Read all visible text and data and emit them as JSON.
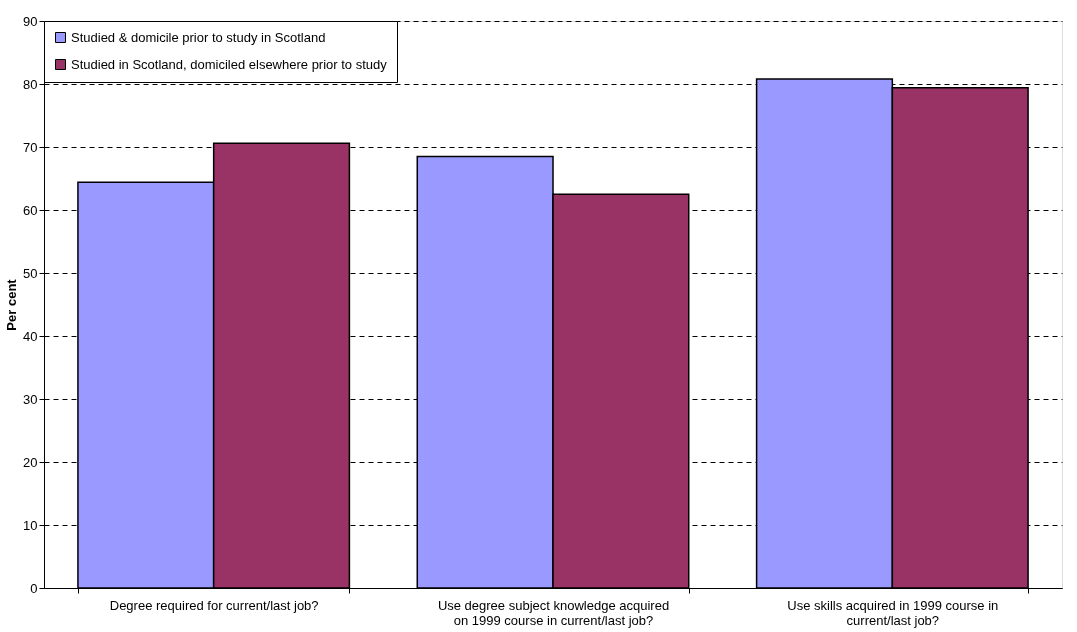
{
  "chart_data": {
    "type": "bar",
    "ylabel": "Per cent",
    "categories": [
      "Degree required for current/last job?",
      "Use degree subject knowledge acquired on 1999 course in current/last job?",
      "Use skills acquired in 1999 course in current/last job?"
    ],
    "series": [
      {
        "name": "Studied & domicile prior to study in Scotland",
        "color": "#9999ff",
        "values": [
          64.4,
          68.5,
          80.8
        ]
      },
      {
        "name": "Studied in Scotland, domiciled elsewhere prior to study",
        "color": "#993366",
        "values": [
          70.6,
          62.5,
          79.4
        ]
      }
    ],
    "ylim": [
      0,
      90
    ],
    "yticks": [
      0,
      10,
      20,
      30,
      40,
      50,
      60,
      70,
      80,
      90
    ],
    "grid": "y",
    "legend": "top left"
  }
}
